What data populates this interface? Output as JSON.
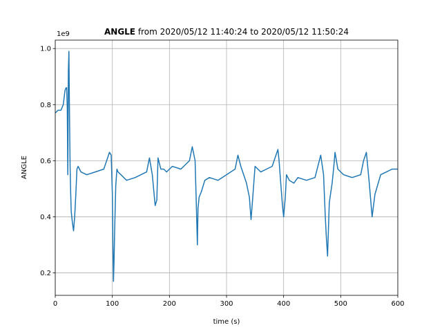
{
  "chart_data": {
    "type": "line",
    "title_bold": "ANGLE",
    "title_rest": " from 2020/05/12 11:40:24 to 2020/05/12 11:50:24",
    "xlabel": "time (s)",
    "ylabel": "ANGLE",
    "offset_label": "1e9",
    "xlim": [
      0,
      600
    ],
    "ylim": [
      0.12,
      1.03
    ],
    "xticks": [
      0,
      100,
      200,
      300,
      400,
      500,
      600
    ],
    "yticks": [
      0.2,
      0.4,
      0.6,
      0.8,
      1.0
    ],
    "ytick_labels": [
      "0.2",
      "0.4",
      "0.6",
      "0.8",
      "1.0"
    ],
    "grid": true,
    "color": "#1f77b4",
    "series": [
      {
        "x": [
          0,
          5,
          10,
          14,
          17,
          19,
          20,
          21,
          22,
          23,
          24,
          25,
          26,
          27,
          28,
          30,
          32,
          34,
          36,
          38,
          40,
          45,
          55,
          70,
          85,
          95,
          98,
          100,
          101,
          102,
          103,
          104,
          106,
          108,
          110,
          115,
          125,
          140,
          160,
          165,
          170,
          175,
          178,
          180,
          185,
          190,
          195,
          205,
          220,
          235,
          240,
          245,
          247,
          249,
          250,
          252,
          256,
          262,
          270,
          285,
          300,
          315,
          320,
          325,
          330,
          335,
          340,
          343,
          346,
          350,
          360,
          370,
          380,
          390,
          392,
          395,
          398,
          400,
          403,
          405,
          410,
          418,
          425,
          440,
          455,
          465,
          470,
          473,
          475,
          477,
          480,
          485,
          488,
          490,
          495,
          505,
          520,
          535,
          540,
          545,
          550,
          555,
          560,
          570,
          580,
          590,
          600
        ],
        "y": [
          0.77,
          0.78,
          0.78,
          0.8,
          0.85,
          0.86,
          0.86,
          0.79,
          0.55,
          0.92,
          0.99,
          0.75,
          0.58,
          0.49,
          0.42,
          0.38,
          0.35,
          0.4,
          0.48,
          0.57,
          0.58,
          0.56,
          0.55,
          0.56,
          0.57,
          0.63,
          0.62,
          0.48,
          0.3,
          0.17,
          0.24,
          0.35,
          0.51,
          0.57,
          0.56,
          0.55,
          0.53,
          0.54,
          0.56,
          0.61,
          0.55,
          0.44,
          0.46,
          0.61,
          0.57,
          0.57,
          0.56,
          0.58,
          0.57,
          0.6,
          0.65,
          0.6,
          0.45,
          0.3,
          0.43,
          0.47,
          0.49,
          0.53,
          0.54,
          0.53,
          0.55,
          0.57,
          0.62,
          0.58,
          0.55,
          0.52,
          0.47,
          0.39,
          0.47,
          0.58,
          0.56,
          0.57,
          0.58,
          0.64,
          0.6,
          0.52,
          0.44,
          0.4,
          0.47,
          0.55,
          0.53,
          0.52,
          0.54,
          0.53,
          0.54,
          0.62,
          0.55,
          0.4,
          0.32,
          0.26,
          0.45,
          0.52,
          0.58,
          0.63,
          0.57,
          0.55,
          0.54,
          0.55,
          0.6,
          0.63,
          0.52,
          0.4,
          0.48,
          0.55,
          0.56,
          0.57,
          0.57
        ]
      }
    ]
  }
}
